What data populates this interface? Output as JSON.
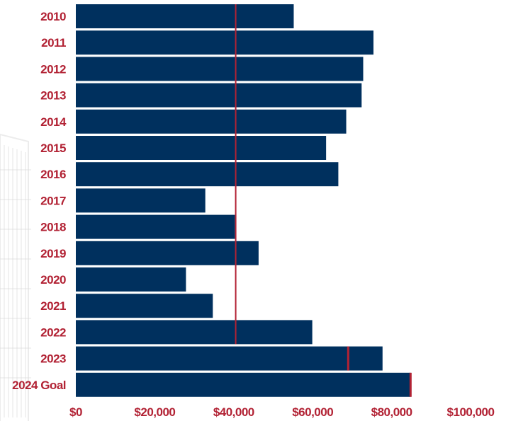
{
  "colors": {
    "bar": "#00305e",
    "accent": "#b22234",
    "watermark": "#dcdcdc"
  },
  "chart_data": {
    "type": "bar",
    "orientation": "horizontal",
    "categories": [
      "2010",
      "2011",
      "2012",
      "2013",
      "2014",
      "2015",
      "2016",
      "2017",
      "2018",
      "2019",
      "2020",
      "2021",
      "2022",
      "2023",
      "2024 Goal"
    ],
    "values": [
      55200,
      75400,
      72800,
      72400,
      68500,
      63400,
      66500,
      32800,
      40300,
      46300,
      27900,
      34700,
      59900,
      77700,
      84800
    ],
    "marker_line": {
      "value": 40500,
      "through_category": "2022"
    },
    "category_markers": [
      {
        "category": "2023",
        "value": 69000
      },
      {
        "category": "2024 Goal",
        "value": 84800
      }
    ],
    "xlim": [
      0,
      100000
    ],
    "xticks": [
      0,
      20000,
      40000,
      60000,
      80000,
      100000
    ],
    "xtick_labels": [
      "$0",
      "$20,000",
      "$40,000",
      "$60,000",
      "$80,000",
      "$100,000"
    ],
    "title": "",
    "xlabel": "",
    "ylabel": "",
    "grid": false,
    "legend": "none"
  }
}
